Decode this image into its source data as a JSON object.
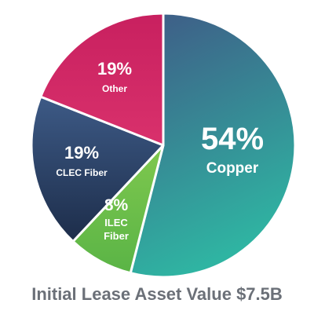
{
  "chart_data": {
    "type": "pie",
    "caption": "Initial Lease Asset Value $7.5B",
    "slices": [
      {
        "pct_label": "54%",
        "name": "Copper",
        "value": 54,
        "color_start": "#3f5a86",
        "color_end": "#2fb4a2"
      },
      {
        "pct_label": "8%",
        "name": "ILEC Fiber",
        "name_lines": [
          "ILEC",
          "Fiber"
        ],
        "value": 8,
        "color_start": "#7fc84e",
        "color_end": "#5ab446"
      },
      {
        "pct_label": "19%",
        "name": "CLEC Fiber",
        "value": 19,
        "color_start": "#3d5a86",
        "color_end": "#1d2d4a"
      },
      {
        "pct_label": "19%",
        "name": "Other",
        "value": 19,
        "color_start": "#c8205f",
        "color_end": "#d9316c"
      }
    ]
  }
}
